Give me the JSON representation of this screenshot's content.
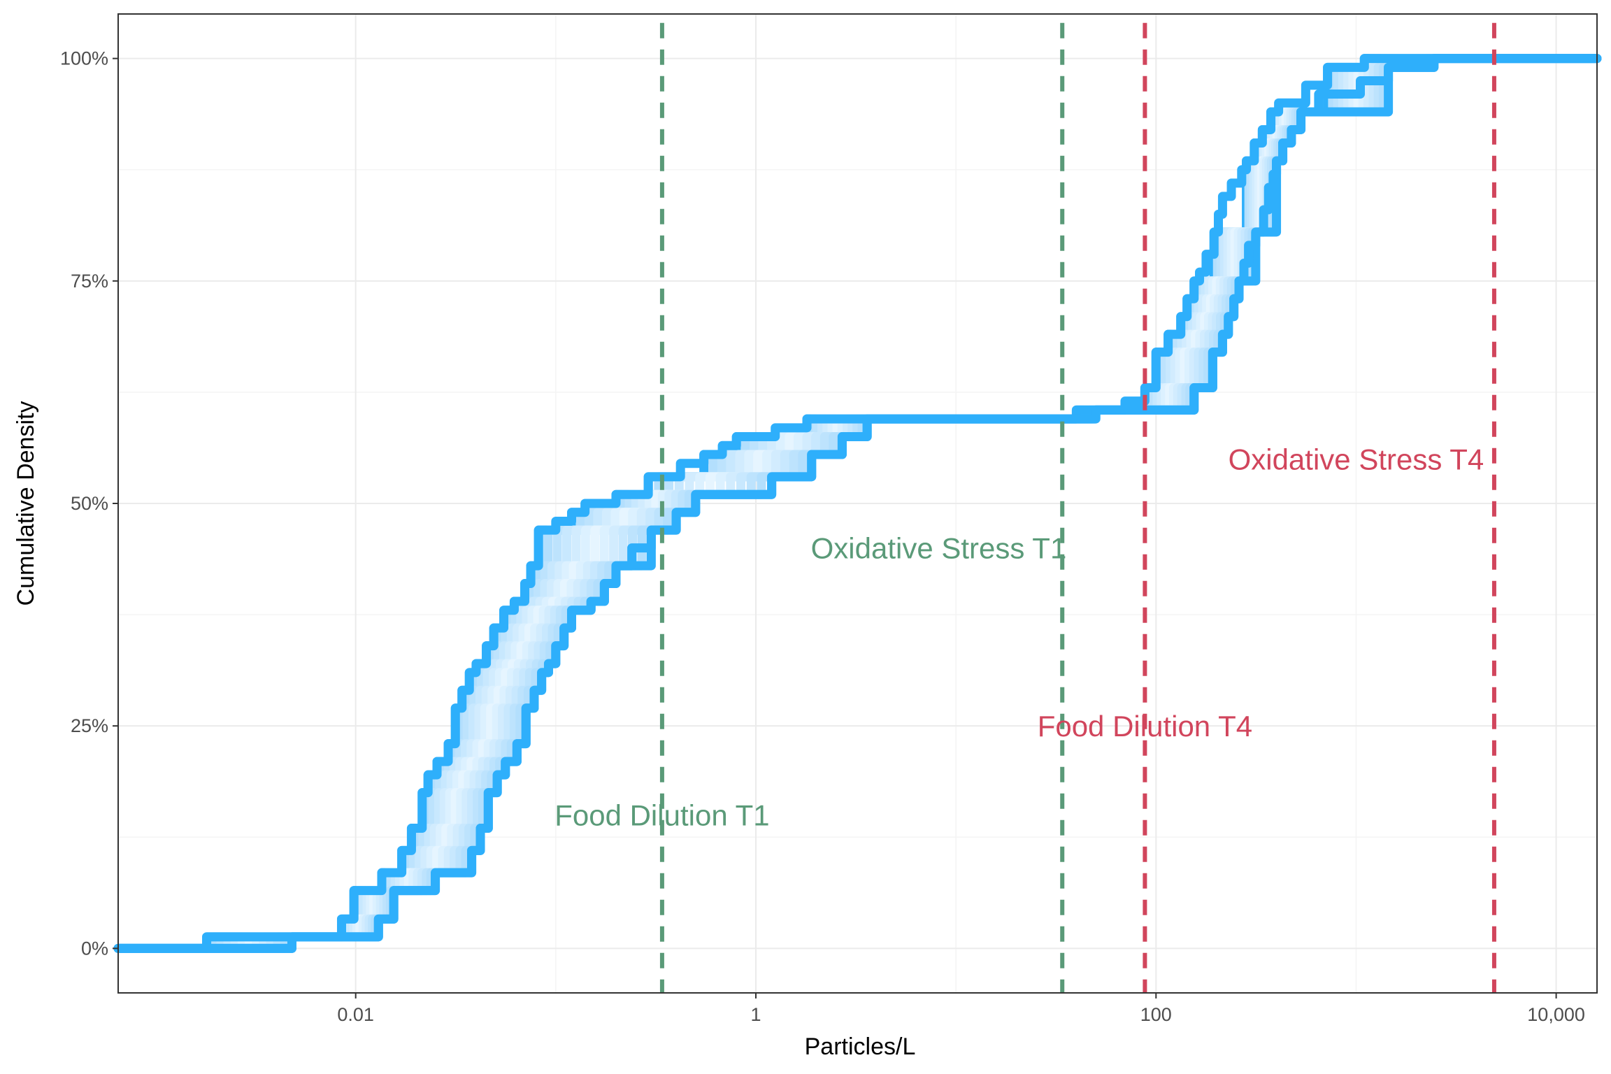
{
  "colors": {
    "green": "#5a9a78",
    "red": "#d1455c",
    "ecdf_outer": "#2eaffb",
    "ecdf_mid": "#a9dafc",
    "ecdf_inner": "#e6f5ff",
    "grid_major": "#ebebeb",
    "grid_minor": "#f4f4f4",
    "panel_border": "#333333"
  },
  "chart_data": {
    "type": "line",
    "xlabel": "Particles/L",
    "ylabel": "Cumulative Density",
    "x_scale": "log10",
    "xlim": [
      0.00065,
      16000
    ],
    "ylim": [
      -0.05,
      1.05
    ],
    "x_ticks": [
      {
        "value": 0.01,
        "label": "0.01"
      },
      {
        "value": 1,
        "label": "1"
      },
      {
        "value": 100,
        "label": "100"
      },
      {
        "value": 10000,
        "label": "10,000"
      }
    ],
    "y_ticks": [
      {
        "value": 0,
        "label": "0%"
      },
      {
        "value": 0.25,
        "label": "25%"
      },
      {
        "value": 0.5,
        "label": "50%"
      },
      {
        "value": 0.75,
        "label": "75%"
      },
      {
        "value": 1,
        "label": "100%"
      }
    ],
    "grid": true,
    "legend": "none",
    "ecdf_band": {
      "upper": [
        [
          0.00065,
          0
        ],
        [
          0.0018,
          0
        ],
        [
          0.0018,
          0.013
        ],
        [
          0.0085,
          0.013
        ],
        [
          0.0085,
          0.033
        ],
        [
          0.0098,
          0.033
        ],
        [
          0.0098,
          0.065
        ],
        [
          0.0135,
          0.065
        ],
        [
          0.0135,
          0.085
        ],
        [
          0.017,
          0.085
        ],
        [
          0.017,
          0.11
        ],
        [
          0.019,
          0.11
        ],
        [
          0.019,
          0.135
        ],
        [
          0.0215,
          0.135
        ],
        [
          0.0215,
          0.175
        ],
        [
          0.023,
          0.175
        ],
        [
          0.023,
          0.195
        ],
        [
          0.0255,
          0.195
        ],
        [
          0.0255,
          0.21
        ],
        [
          0.029,
          0.21
        ],
        [
          0.029,
          0.23
        ],
        [
          0.0315,
          0.23
        ],
        [
          0.0315,
          0.27
        ],
        [
          0.034,
          0.27
        ],
        [
          0.034,
          0.29
        ],
        [
          0.037,
          0.29
        ],
        [
          0.037,
          0.31
        ],
        [
          0.04,
          0.31
        ],
        [
          0.04,
          0.32
        ],
        [
          0.045,
          0.32
        ],
        [
          0.045,
          0.34
        ],
        [
          0.049,
          0.34
        ],
        [
          0.049,
          0.36
        ],
        [
          0.055,
          0.36
        ],
        [
          0.055,
          0.38
        ],
        [
          0.062,
          0.38
        ],
        [
          0.062,
          0.39
        ],
        [
          0.07,
          0.39
        ],
        [
          0.07,
          0.41
        ],
        [
          0.075,
          0.41
        ],
        [
          0.075,
          0.43
        ],
        [
          0.082,
          0.43
        ],
        [
          0.082,
          0.47
        ],
        [
          0.1,
          0.47
        ],
        [
          0.1,
          0.48
        ],
        [
          0.12,
          0.48
        ],
        [
          0.12,
          0.49
        ],
        [
          0.14,
          0.49
        ],
        [
          0.14,
          0.5
        ],
        [
          0.2,
          0.5
        ],
        [
          0.2,
          0.51
        ],
        [
          0.29,
          0.51
        ],
        [
          0.29,
          0.53
        ],
        [
          0.42,
          0.53
        ],
        [
          0.42,
          0.545
        ],
        [
          0.55,
          0.545
        ],
        [
          0.55,
          0.555
        ],
        [
          0.68,
          0.555
        ],
        [
          0.68,
          0.565
        ],
        [
          0.8,
          0.565
        ],
        [
          0.8,
          0.575
        ],
        [
          1.25,
          0.575
        ],
        [
          1.25,
          0.585
        ],
        [
          1.8,
          0.585
        ],
        [
          1.8,
          0.595
        ],
        [
          40,
          0.595
        ],
        [
          40,
          0.605
        ],
        [
          70,
          0.605
        ],
        [
          70,
          0.615
        ],
        [
          88,
          0.615
        ],
        [
          88,
          0.63
        ],
        [
          100,
          0.63
        ],
        [
          100,
          0.67
        ],
        [
          115,
          0.67
        ],
        [
          115,
          0.69
        ],
        [
          133,
          0.69
        ],
        [
          133,
          0.71
        ],
        [
          143,
          0.71
        ],
        [
          143,
          0.73
        ],
        [
          155,
          0.73
        ],
        [
          155,
          0.75
        ],
        [
          165,
          0.75
        ],
        [
          165,
          0.76
        ],
        [
          178,
          0.76
        ],
        [
          178,
          0.78
        ],
        [
          195,
          0.78
        ],
        [
          195,
          0.805
        ],
        [
          205,
          0.805
        ],
        [
          205,
          0.825
        ],
        [
          215,
          0.825
        ],
        [
          215,
          0.845
        ],
        [
          238,
          0.845
        ],
        [
          238,
          0.86
        ],
        [
          268,
          0.86
        ],
        [
          268,
          0.875
        ],
        [
          283,
          0.875
        ],
        [
          283,
          0.885
        ],
        [
          310,
          0.885
        ],
        [
          310,
          0.905
        ],
        [
          340,
          0.905
        ],
        [
          340,
          0.92
        ],
        [
          375,
          0.92
        ],
        [
          375,
          0.94
        ],
        [
          410,
          0.94
        ],
        [
          410,
          0.95
        ],
        [
          560,
          0.95
        ],
        [
          560,
          0.97
        ],
        [
          720,
          0.97
        ],
        [
          720,
          0.99
        ],
        [
          1100,
          0.99
        ],
        [
          1100,
          1.0
        ],
        [
          16000,
          1.0
        ]
      ],
      "lower": [
        [
          0.00065,
          0
        ],
        [
          0.0048,
          0
        ],
        [
          0.0048,
          0.013
        ],
        [
          0.013,
          0.013
        ],
        [
          0.013,
          0.033
        ],
        [
          0.0155,
          0.033
        ],
        [
          0.0155,
          0.065
        ],
        [
          0.025,
          0.065
        ],
        [
          0.025,
          0.085
        ],
        [
          0.038,
          0.085
        ],
        [
          0.038,
          0.11
        ],
        [
          0.042,
          0.11
        ],
        [
          0.042,
          0.135
        ],
        [
          0.046,
          0.135
        ],
        [
          0.046,
          0.175
        ],
        [
          0.051,
          0.175
        ],
        [
          0.051,
          0.195
        ],
        [
          0.056,
          0.195
        ],
        [
          0.056,
          0.21
        ],
        [
          0.064,
          0.21
        ],
        [
          0.064,
          0.23
        ],
        [
          0.071,
          0.23
        ],
        [
          0.071,
          0.27
        ],
        [
          0.078,
          0.27
        ],
        [
          0.078,
          0.29
        ],
        [
          0.085,
          0.29
        ],
        [
          0.085,
          0.31
        ],
        [
          0.092,
          0.31
        ],
        [
          0.092,
          0.32
        ],
        [
          0.1,
          0.32
        ],
        [
          0.1,
          0.34
        ],
        [
          0.11,
          0.34
        ],
        [
          0.11,
          0.36
        ],
        [
          0.12,
          0.36
        ],
        [
          0.12,
          0.38
        ],
        [
          0.15,
          0.38
        ],
        [
          0.15,
          0.39
        ],
        [
          0.175,
          0.39
        ],
        [
          0.175,
          0.41
        ],
        [
          0.2,
          0.41
        ],
        [
          0.2,
          0.43
        ],
        [
          0.24,
          0.43
        ],
        [
          0.24,
          0.45
        ],
        [
          0.3,
          0.45
        ],
        [
          0.3,
          0.47
        ],
        [
          0.4,
          0.47
        ],
        [
          0.4,
          0.49
        ],
        [
          0.5,
          0.49
        ],
        [
          0.5,
          0.51
        ],
        [
          1.2,
          0.51
        ],
        [
          1.2,
          0.53
        ],
        [
          1.9,
          0.53
        ],
        [
          1.9,
          0.555
        ],
        [
          2.7,
          0.555
        ],
        [
          2.7,
          0.575
        ],
        [
          3.6,
          0.575
        ],
        [
          3.6,
          0.595
        ],
        [
          50,
          0.595
        ],
        [
          50,
          0.605
        ],
        [
          155,
          0.605
        ],
        [
          155,
          0.63
        ],
        [
          192,
          0.63
        ],
        [
          192,
          0.67
        ],
        [
          215,
          0.67
        ],
        [
          215,
          0.69
        ],
        [
          230,
          0.69
        ],
        [
          230,
          0.71
        ],
        [
          245,
          0.71
        ],
        [
          245,
          0.73
        ],
        [
          260,
          0.73
        ],
        [
          260,
          0.75
        ],
        [
          275,
          0.75
        ],
        [
          275,
          0.77
        ],
        [
          290,
          0.77
        ],
        [
          290,
          0.79
        ],
        [
          315,
          0.79
        ],
        [
          315,
          0.805
        ],
        [
          345,
          0.805
        ],
        [
          345,
          0.83
        ],
        [
          365,
          0.83
        ],
        [
          365,
          0.855
        ],
        [
          385,
          0.855
        ],
        [
          385,
          0.87
        ],
        [
          400,
          0.87
        ],
        [
          400,
          0.885
        ],
        [
          430,
          0.885
        ],
        [
          430,
          0.905
        ],
        [
          475,
          0.905
        ],
        [
          475,
          0.92
        ],
        [
          530,
          0.92
        ],
        [
          530,
          0.94
        ],
        [
          650,
          0.94
        ],
        [
          650,
          0.96
        ],
        [
          1050,
          0.96
        ],
        [
          1050,
          0.975
        ],
        [
          1450,
          0.975
        ],
        [
          1450,
          0.99
        ],
        [
          2450,
          0.99
        ],
        [
          2450,
          1.0
        ],
        [
          16000,
          1.0
        ]
      ]
    },
    "reference_lines": [
      {
        "x": 0.34,
        "color": "green",
        "label": "Food Dilution T1",
        "label_x": 0.34,
        "label_y": 0.15
      },
      {
        "x": 34,
        "color": "green",
        "label": "Oxidative Stress T1",
        "label_x": 8.2,
        "label_y": 0.45
      },
      {
        "x": 88,
        "color": "red",
        "label": "Food Dilution T4",
        "label_x": 88,
        "label_y": 0.25
      },
      {
        "x": 4900,
        "color": "red",
        "label": "Oxidative Stress T4",
        "label_x": 1000,
        "label_y": 0.55
      }
    ]
  }
}
